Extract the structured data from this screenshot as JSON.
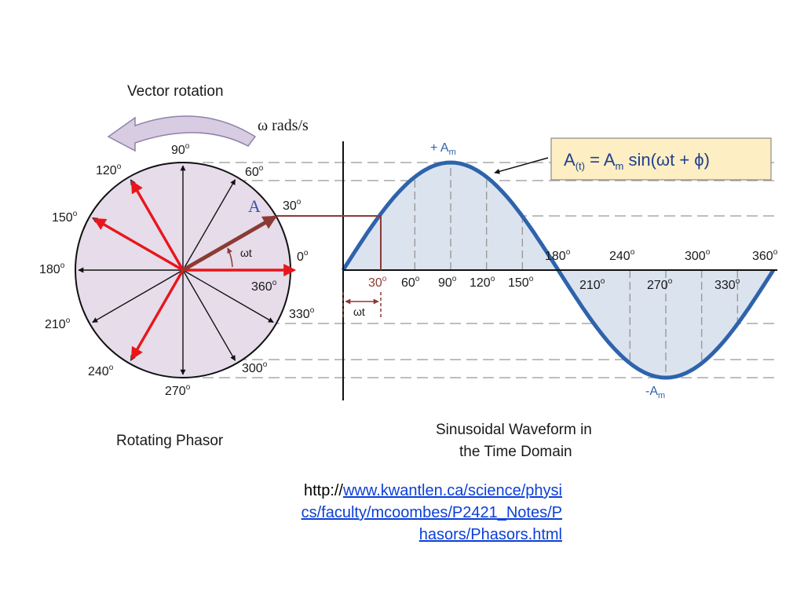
{
  "phasor": {
    "vector_rotation": "Vector rotation",
    "omega_rads": "ω rads/s",
    "vector_name": "A",
    "omega_t": "ωt",
    "caption": "Rotating Phasor",
    "angles": [
      "0",
      "30",
      "60",
      "90",
      "120",
      "150",
      "180",
      "210",
      "240",
      "270",
      "300",
      "330",
      "360"
    ]
  },
  "waveform": {
    "top_axis_angles": [
      "180",
      "240",
      "300",
      "360"
    ],
    "bottom_axis_angles": [
      "30",
      "60",
      "90",
      "120",
      "150",
      "210",
      "270",
      "330"
    ],
    "peak_label": "+ A",
    "trough_label": "-A",
    "amp_sub": "m",
    "omega_t": "ωt",
    "caption_line1": "Sinusoidal Waveform in",
    "caption_line2": "the Time Domain"
  },
  "formula": {
    "lhs": "A",
    "lhs_sub": "(t)",
    "eq": " = A",
    "amp_sub": "m",
    "rhs": " sin(ωt + ϕ)"
  },
  "degree_symbol": "o",
  "source": {
    "prefix": "http://",
    "link_text": "www.kwantlen.ca/science/physics/faculty/mcoombes/P2421_Notes/Phasors/Phasors.html"
  },
  "colors": {
    "circle_fill": "#e6dcea",
    "wave_fill": "#dbe3ee",
    "wave_line": "#2e63ac",
    "red_vectors": "#e8161b",
    "main_vector": "#8b3a34",
    "projection": "#8b3a34",
    "arrow_body": "#d8cce2",
    "arrow_stroke": "#8e83a8",
    "formula_bg": "#fdeec3"
  }
}
